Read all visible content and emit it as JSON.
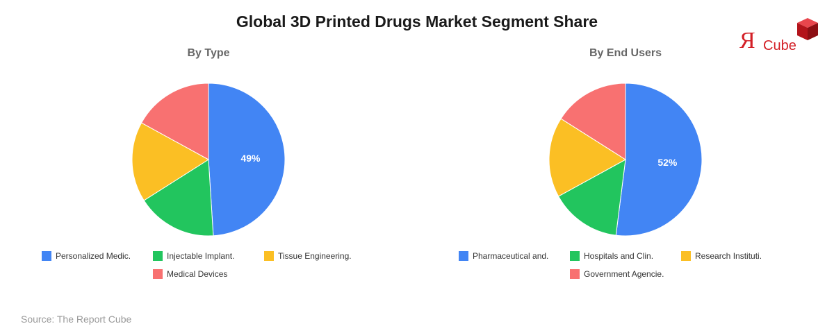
{
  "title": "Global 3D Printed Drugs Market Segment Share",
  "logo": {
    "mark": "Я",
    "word": "Cube"
  },
  "source": "Source: The Report Cube",
  "colors": {
    "blue": "#4285f4",
    "green": "#22c55e",
    "yellow": "#fbbf24",
    "red": "#f87171",
    "logo_red": "#d32027"
  },
  "chart_data": [
    {
      "type": "pie",
      "title": "By Type",
      "categories": [
        "Personalized Medic.",
        "Injectable Implant.",
        "Tissue Engineering.",
        "Medical Devices"
      ],
      "values": [
        49,
        17,
        17,
        17
      ],
      "colors": [
        "#4285f4",
        "#22c55e",
        "#fbbf24",
        "#f87171"
      ],
      "data_labels": [
        "49%",
        "",
        "",
        ""
      ],
      "legend_position": "bottom"
    },
    {
      "type": "pie",
      "title": "By End Users",
      "categories": [
        "Pharmaceutical and.",
        "Hospitals and Clin.",
        "Research Instituti.",
        "Government Agencie."
      ],
      "values": [
        52,
        15,
        17,
        16
      ],
      "colors": [
        "#4285f4",
        "#22c55e",
        "#fbbf24",
        "#f87171"
      ],
      "data_labels": [
        "52%",
        "",
        "",
        ""
      ],
      "legend_position": "bottom"
    }
  ]
}
